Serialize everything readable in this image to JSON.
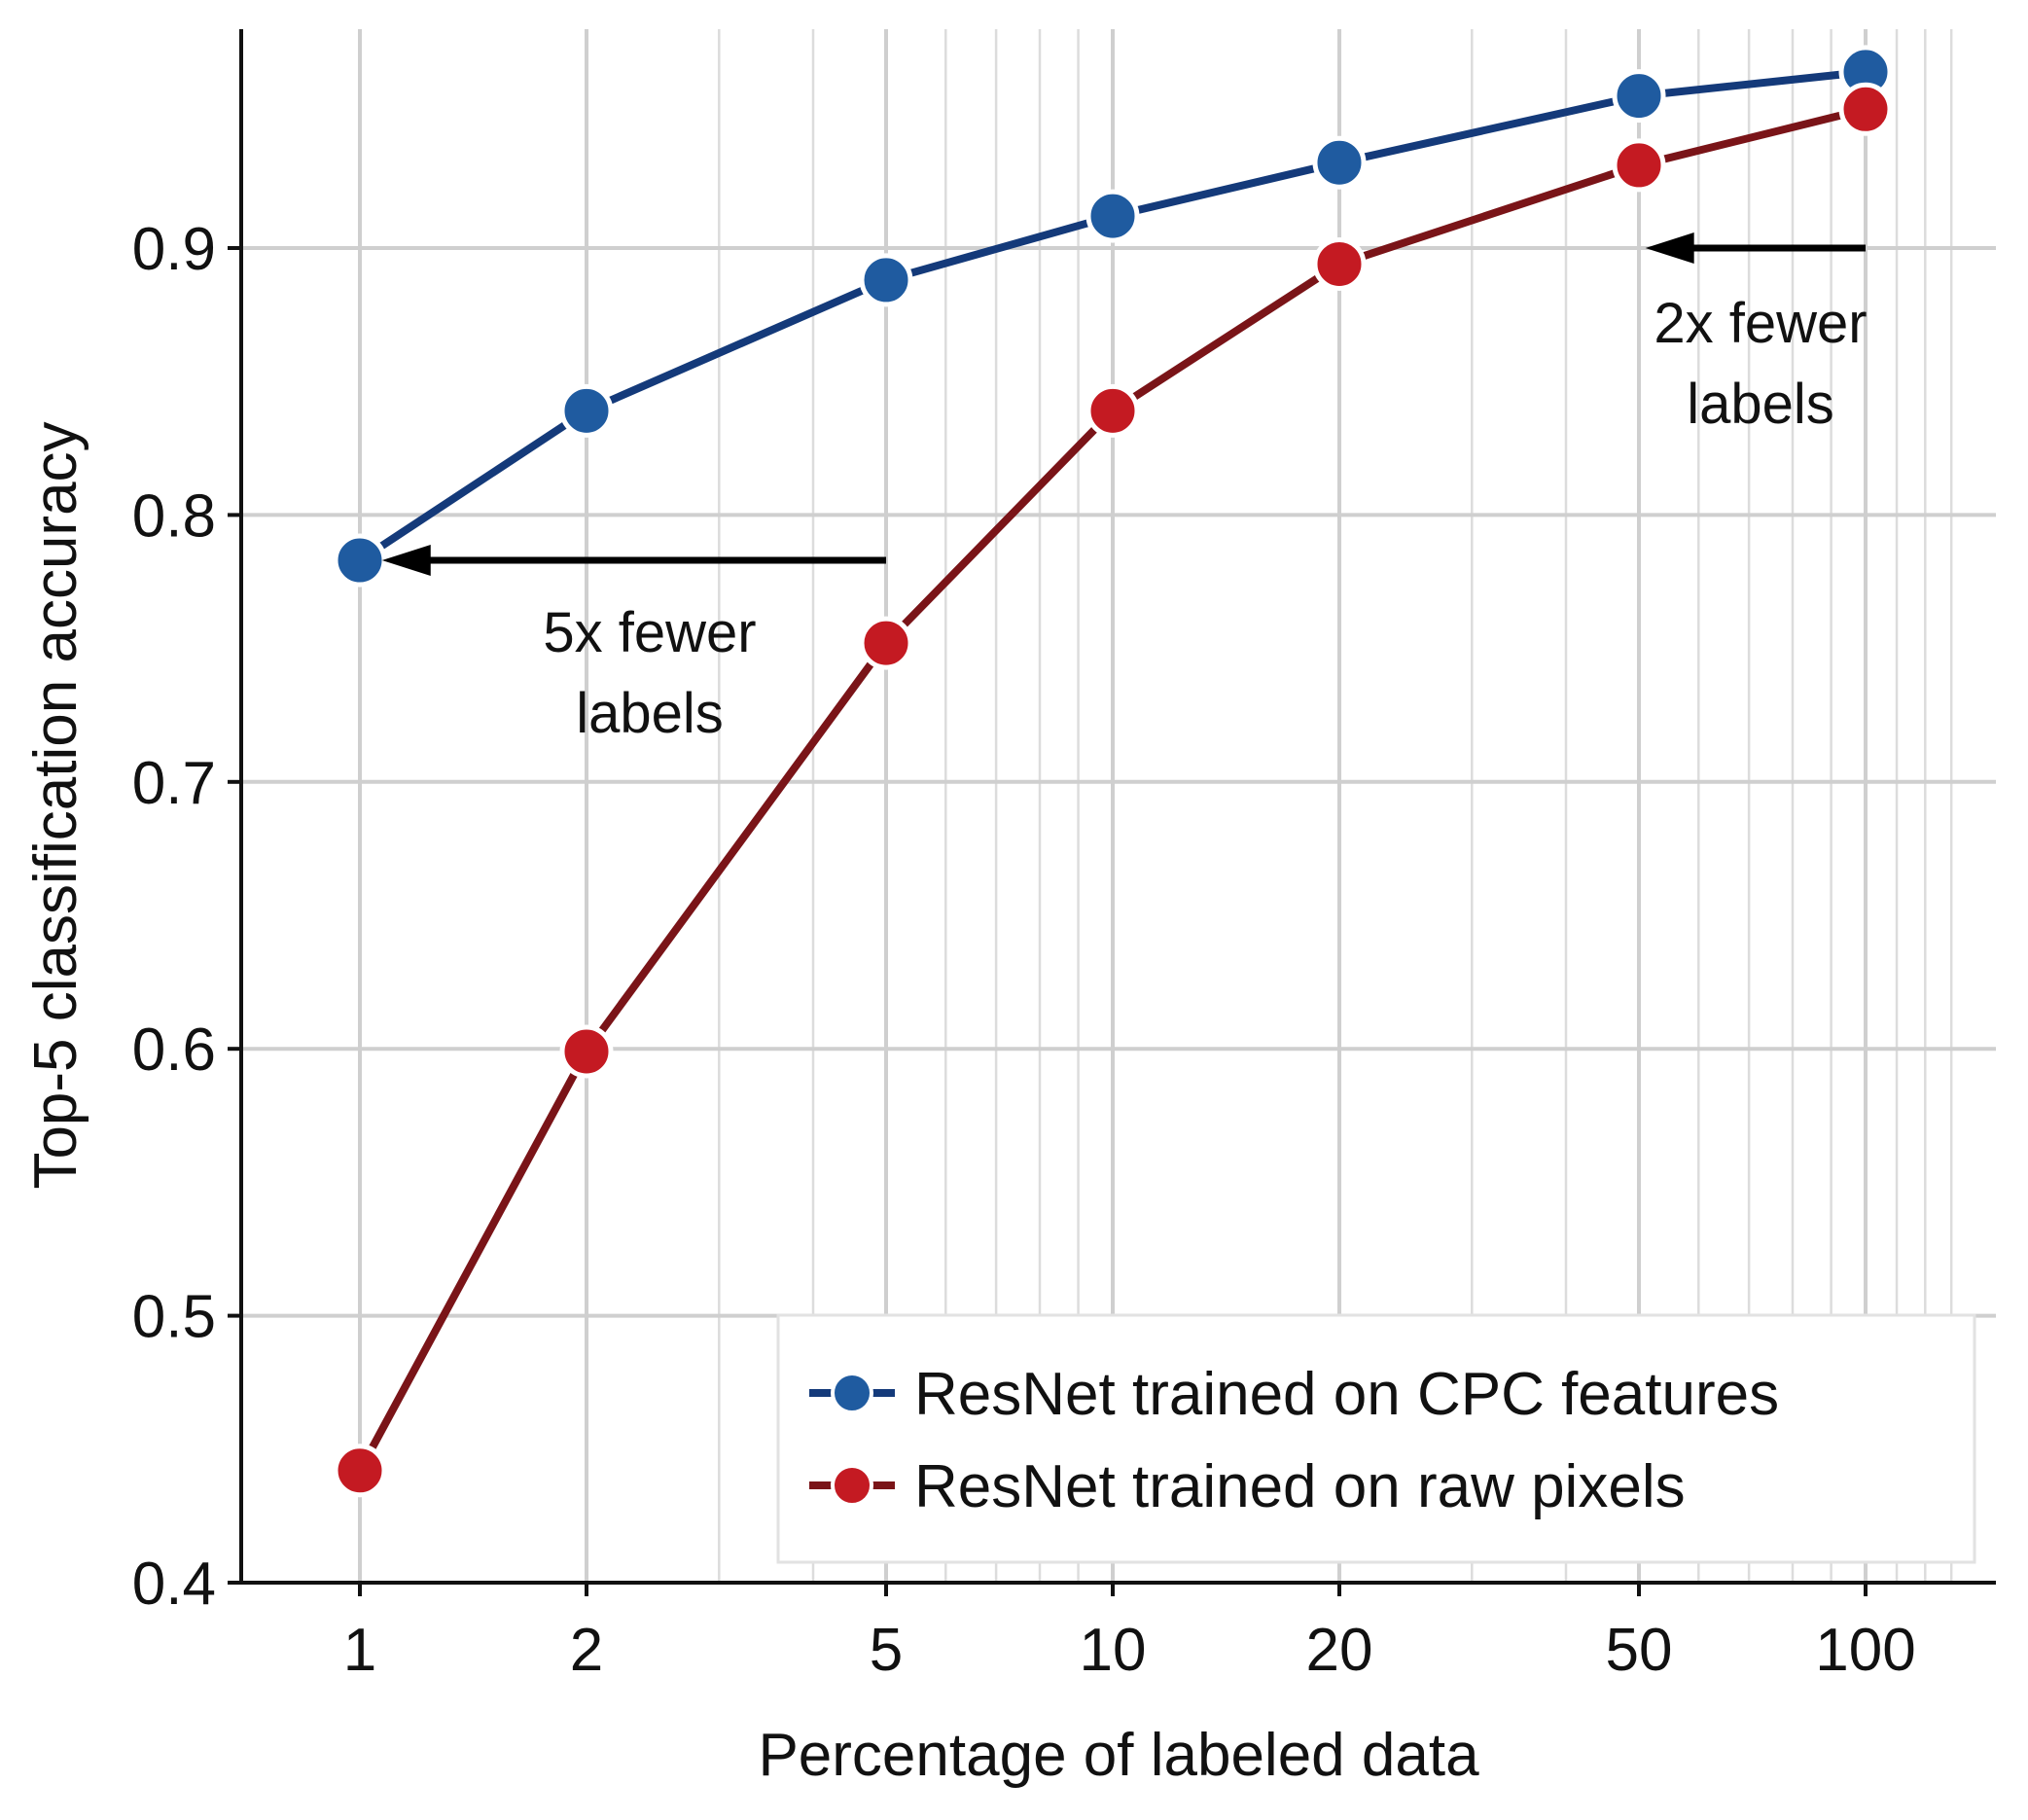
{
  "chart_data": {
    "type": "line",
    "title": "",
    "xlabel": "Percentage of labeled data",
    "ylabel": "Top-5 classification accuracy",
    "x_scale": "log",
    "xlim": [
      0.8,
      140
    ],
    "ylim": [
      0.4,
      0.97
    ],
    "x_ticks": [
      1,
      2,
      5,
      10,
      20,
      50,
      100
    ],
    "x_tick_labels": [
      "1",
      "2",
      "5",
      "10",
      "20",
      "50",
      "100"
    ],
    "y_ticks": [
      0.4,
      0.5,
      0.6,
      0.7,
      0.8,
      0.9
    ],
    "y_tick_labels": [
      "0.4",
      "0.5",
      "0.6",
      "0.7",
      "0.8",
      "0.9"
    ],
    "grid": true,
    "legend_position": "bottom-right",
    "series": [
      {
        "name": "ResNet trained on CPC features",
        "color": "#143a7a",
        "marker_color": "#1f5ba0",
        "x": [
          1,
          2,
          5,
          10,
          20,
          50,
          100
        ],
        "values": [
          0.783,
          0.839,
          0.888,
          0.912,
          0.932,
          0.957,
          0.966
        ]
      },
      {
        "name": "ResNet trained on raw pixels",
        "color": "#7a1418",
        "marker_color": "#c41a22",
        "x": [
          1,
          2,
          5,
          10,
          20,
          50,
          100
        ],
        "values": [
          0.442,
          0.599,
          0.752,
          0.839,
          0.894,
          0.931,
          0.952
        ]
      }
    ],
    "annotations": [
      {
        "id": "five",
        "text_lines": [
          "5x fewer",
          "labels"
        ],
        "arrow_from": [
          5,
          0.783
        ],
        "arrow_to": [
          1.07,
          0.783
        ]
      },
      {
        "id": "two",
        "text_lines": [
          "2x fewer",
          "labels"
        ],
        "arrow_from": [
          100,
          0.9
        ],
        "arrow_to": [
          51,
          0.9
        ]
      }
    ]
  }
}
